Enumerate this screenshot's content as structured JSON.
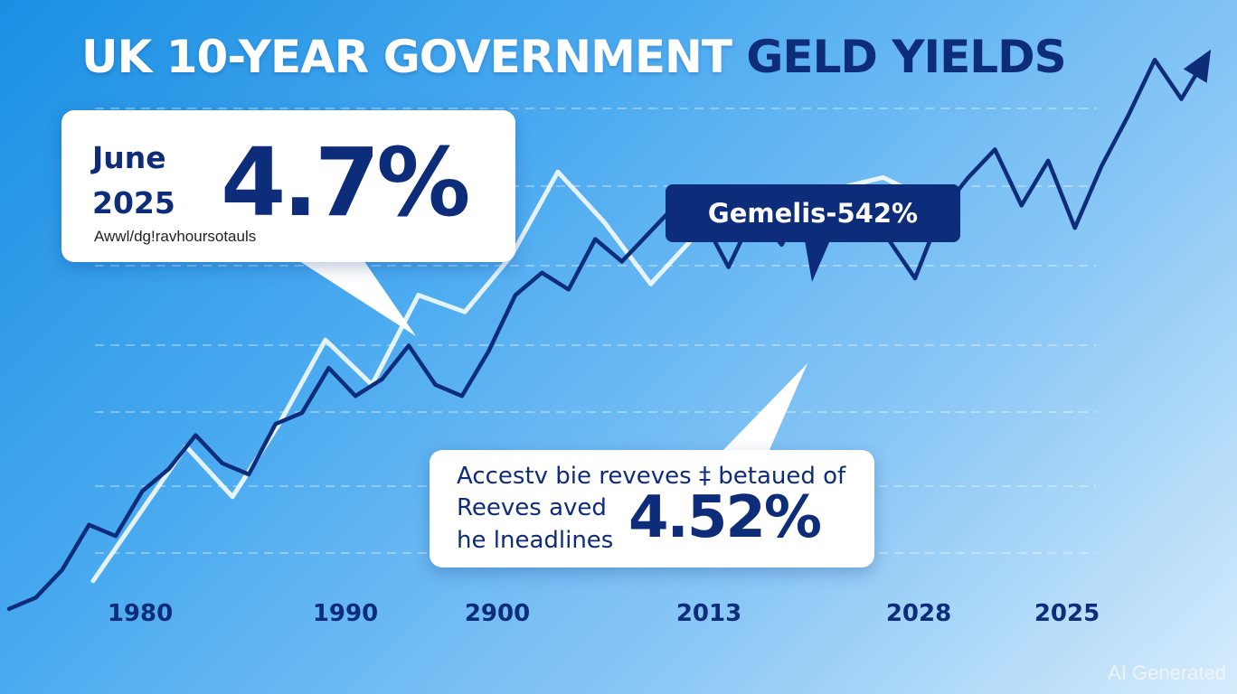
{
  "title_main": "UK 10-YEAR GOVERNMENT ",
  "title_accent": "GELD YIELDS",
  "callout_june": {
    "label_line1": "June",
    "label_line2": "2025",
    "value": "4.7%",
    "subtext": "Awwl/dg!ravhoursotauls"
  },
  "callout_gemelis": {
    "text": "Gemelis-542%"
  },
  "callout_reeves": {
    "line1": "Accestv bie reveves ‡ betaued of",
    "line2": "Reeves aved",
    "line3": "he lneadlines",
    "value": "4.52%"
  },
  "watermark": "AI Generated",
  "colors": {
    "main_series": "#0d2c7a",
    "secondary_series": "#ffffff",
    "callout_dark": "#0d2c7a",
    "text_dark": "#0d2c7a"
  },
  "icons": [
    "arrow-up-right-icon"
  ],
  "chart_data": {
    "type": "line",
    "title": "UK 10-YEAR GOVERNMENT GELD YIELDS",
    "x_tick_labels": [
      "1980",
      "1990",
      "2900",
      "2013",
      "2028",
      "2025"
    ],
    "y_tick_labels": [],
    "grid": true,
    "legend": "none",
    "ylim": [
      0,
      10
    ],
    "series": [
      {
        "values": [
          0.1,
          0.3,
          0.8,
          1.6,
          1.4,
          2.2,
          2.6,
          3.2,
          2.7,
          2.5,
          3.4,
          3.6,
          4.4,
          3.9,
          4.2,
          4.8,
          4.1,
          3.9,
          4.7,
          5.7,
          6.1,
          5.8,
          6.7,
          6.3,
          6.8,
          7.3,
          7.1,
          6.2,
          7.2,
          6.6,
          7.5,
          6.9,
          7.3,
          6.7,
          6.0,
          7.2,
          7.8,
          8.3,
          7.3,
          8.1,
          6.9,
          8.0,
          8.9,
          9.9,
          9.2,
          10.0
        ]
      },
      {
        "values": [
          0.6,
          1.8,
          3.0,
          2.1,
          3.4,
          4.9,
          4.1,
          5.7,
          5.4,
          6.4,
          7.9,
          7.0,
          5.9,
          6.8,
          7.2,
          7.1,
          7.6,
          7.8,
          7.4
        ]
      }
    ]
  }
}
